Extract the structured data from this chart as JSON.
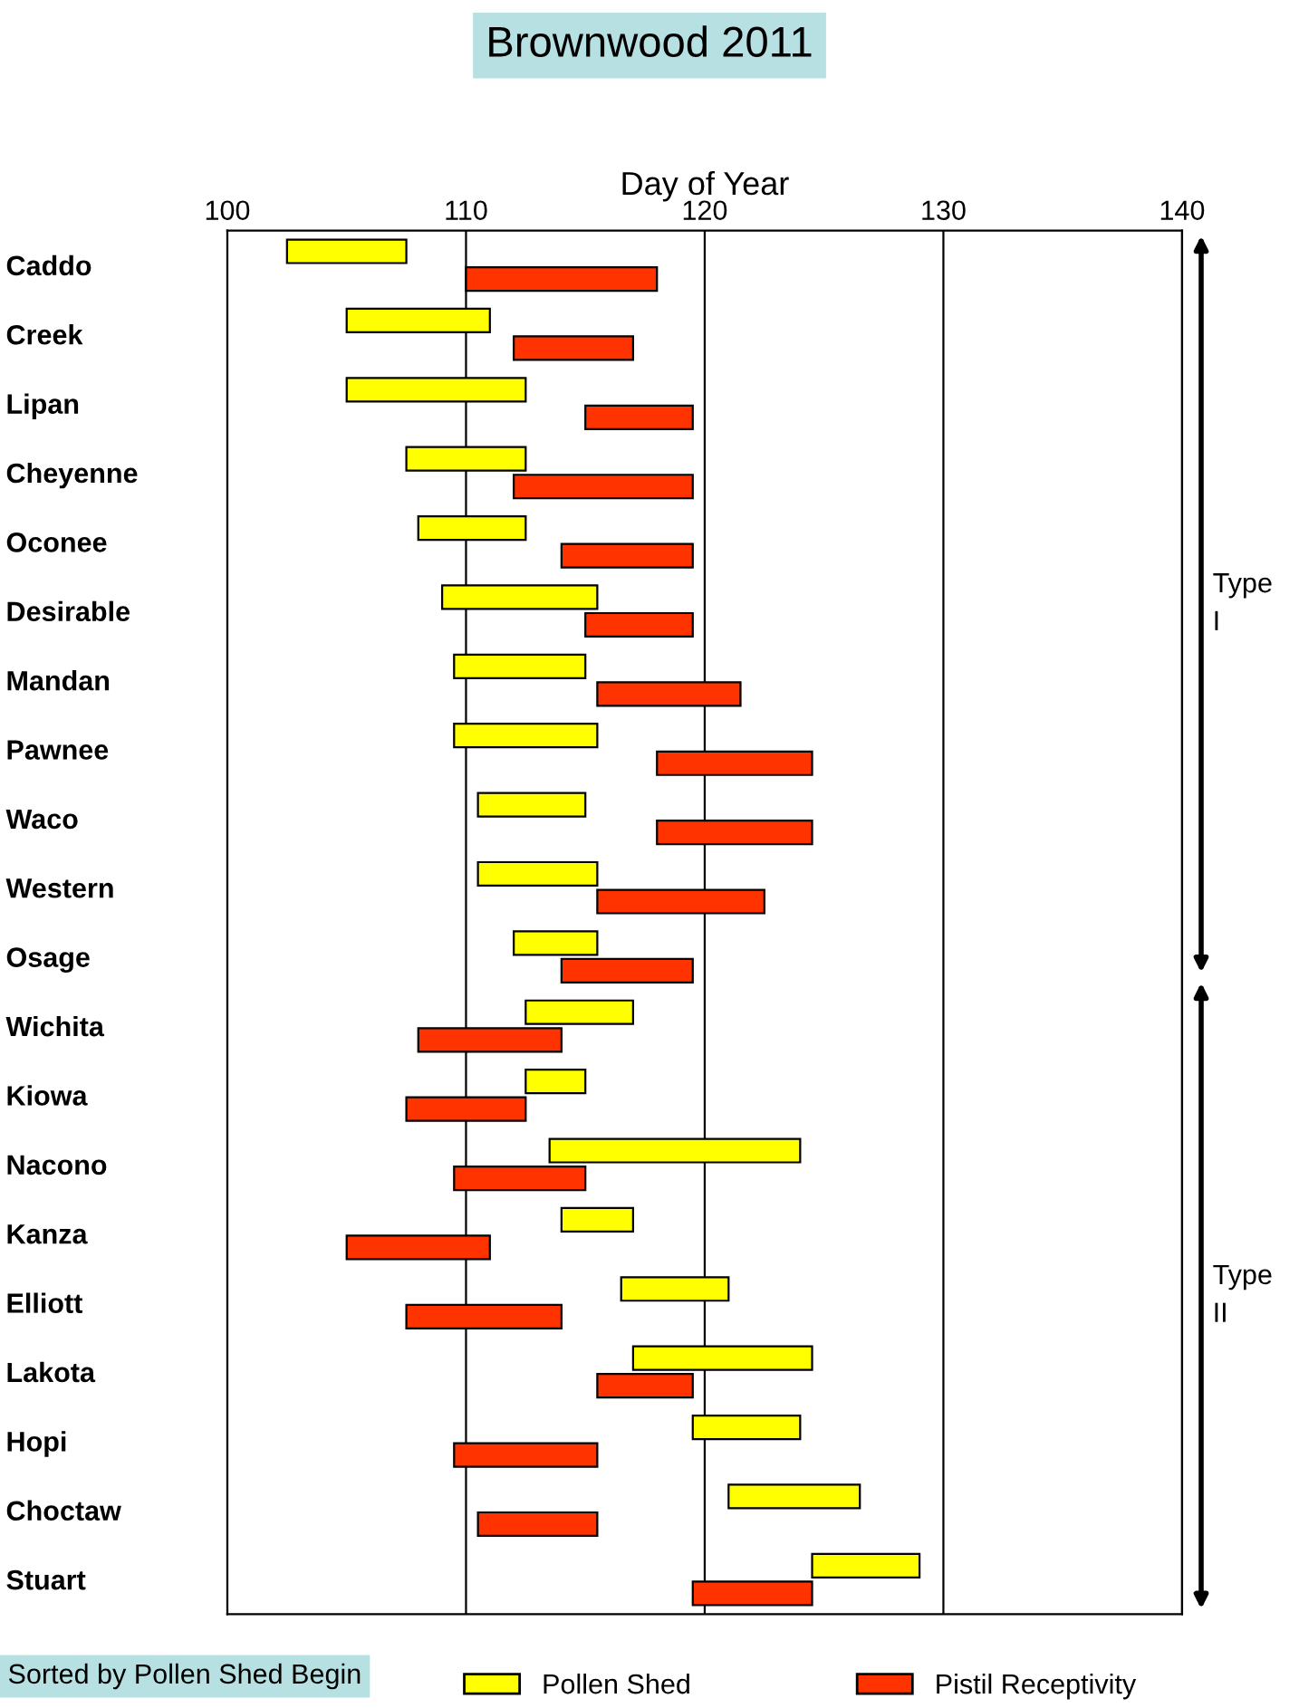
{
  "chart_data": {
    "type": "bar",
    "orientation": "horizontal",
    "title": "Brownwood 2011",
    "xlabel": "Day of Year",
    "categories": [
      "Caddo",
      "Creek",
      "Lipan",
      "Cheyenne",
      "Oconee",
      "Desirable",
      "Mandan",
      "Pawnee",
      "Waco",
      "Western",
      "Osage",
      "Wichita",
      "Kiowa",
      "Nacono",
      "Kanza",
      "Elliott",
      "Lakota",
      "Hopi",
      "Choctaw",
      "Stuart"
    ],
    "series": [
      {
        "name": "Pollen Shed",
        "color": "#ffff00",
        "base": [
          102.5,
          105,
          105,
          107.5,
          108,
          109,
          109.5,
          109.5,
          110.5,
          110.5,
          112,
          112.5,
          112.5,
          113.5,
          114,
          116.5,
          117,
          119.5,
          121,
          124.5
        ],
        "values": [
          5,
          6,
          7.5,
          5,
          4.5,
          6.5,
          5.5,
          6,
          4.5,
          5,
          3.5,
          4.5,
          2.5,
          10.5,
          3,
          4.5,
          7.5,
          4.5,
          5.5,
          4.5
        ]
      },
      {
        "name": "Pistil Receptivity",
        "color": "#ff3300",
        "base": [
          110,
          112,
          115,
          112,
          114,
          115,
          115.5,
          118,
          118,
          115.5,
          114,
          108,
          107.5,
          109.5,
          105,
          107.5,
          115.5,
          109.5,
          110.5,
          119.5
        ],
        "values": [
          8,
          5,
          4.5,
          7.5,
          5.5,
          4.5,
          6,
          6.5,
          6.5,
          7,
          5.5,
          6,
          5,
          5.5,
          6,
          6.5,
          4,
          6,
          5,
          5
        ]
      }
    ],
    "xlim": [
      100,
      140
    ],
    "xticks": [
      100,
      110,
      120,
      130,
      140
    ],
    "grid": "x",
    "legend": "bottom",
    "annotations": [
      "Type I",
      "Type II",
      "Sorted by Pollen Shed Begin"
    ]
  }
}
